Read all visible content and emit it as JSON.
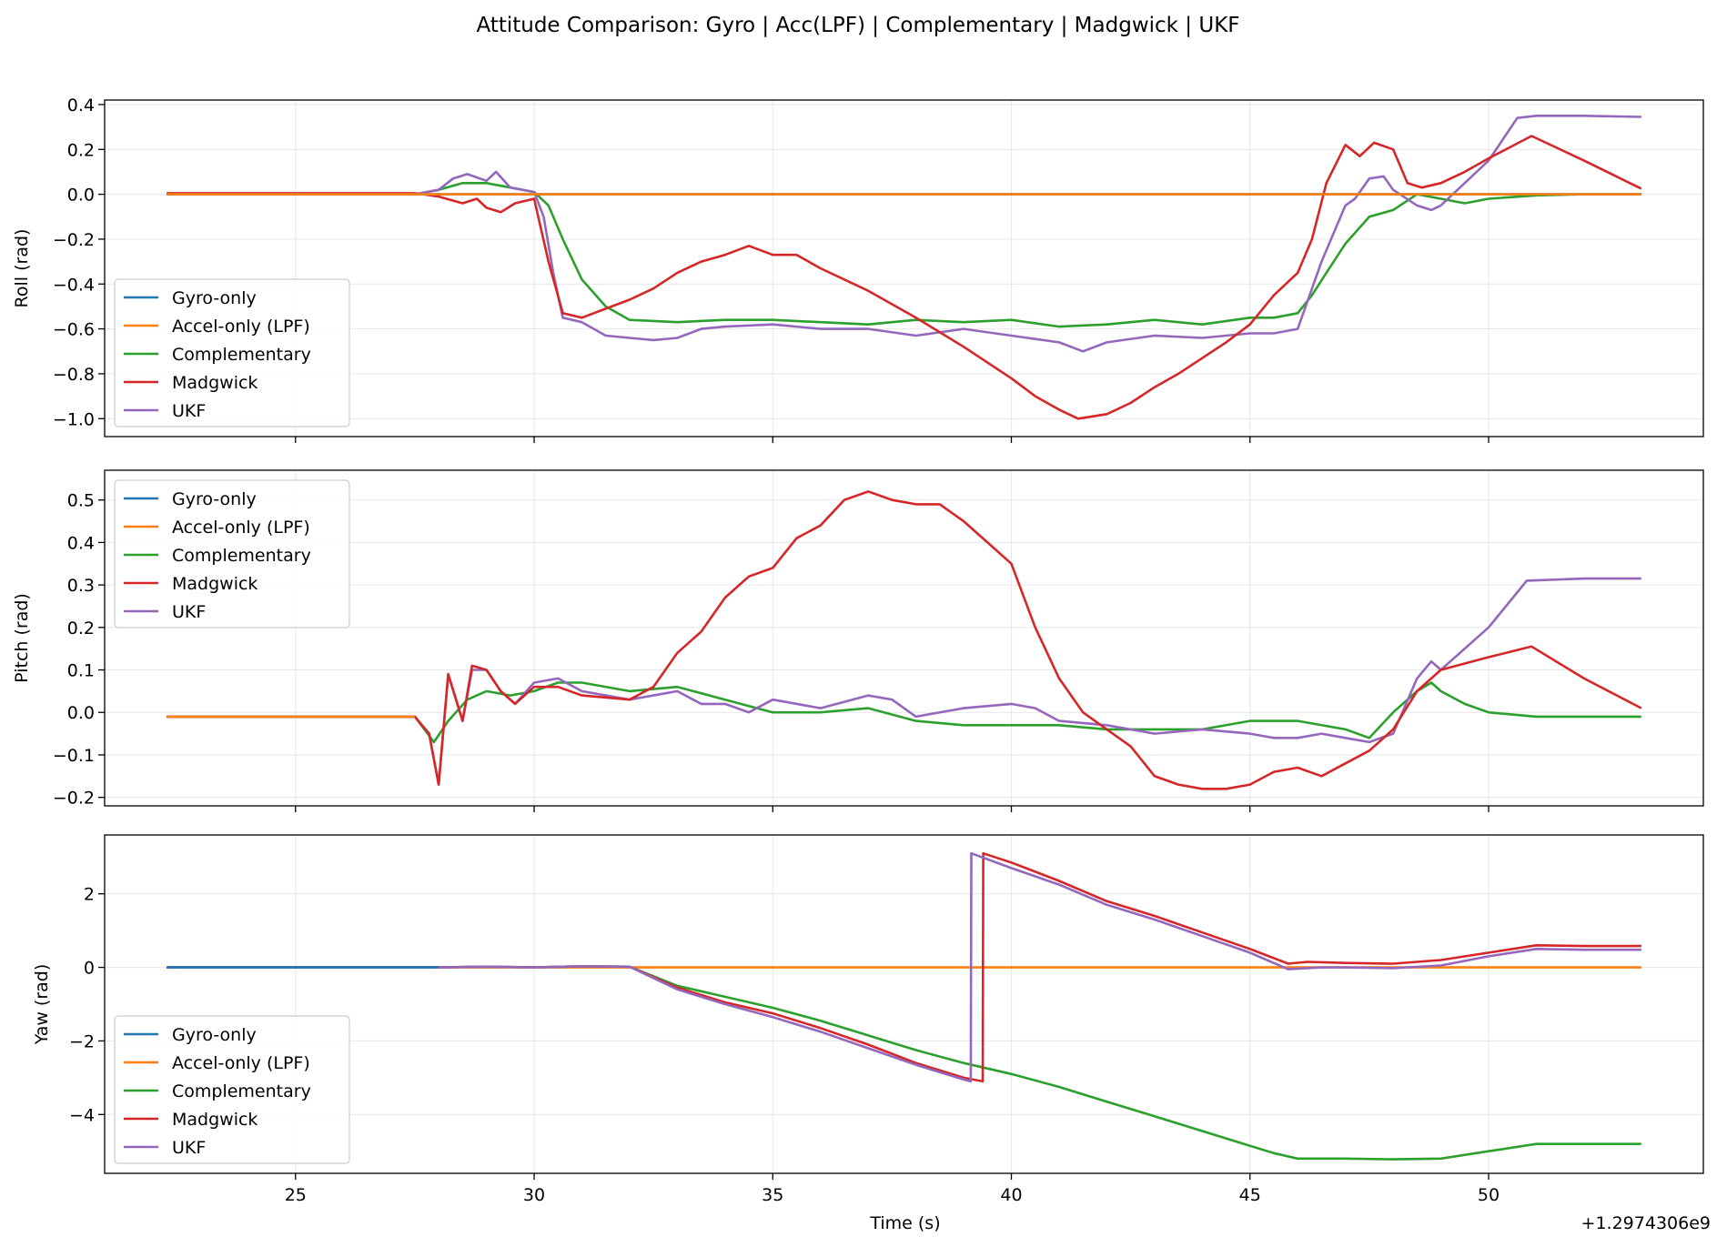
{
  "title": "Attitude Comparison: Gyro | Acc(LPF) | Complementary | Madgwick | UKF",
  "colors": {
    "Gyro-only": "#1f77b4",
    "Accel-only (LPF)": "#ff7f0e",
    "Complementary": "#2ca02c",
    "Madgwick": "#d62728",
    "UKF": "#9467bd"
  },
  "chart_data": [
    {
      "type": "line",
      "ylabel": "Roll (rad)",
      "xlabel": "",
      "xlim": [
        21,
        54.5
      ],
      "ylim": [
        -1.08,
        0.42
      ],
      "xticks": [
        25,
        30,
        35,
        40,
        45,
        50
      ],
      "yticks": [
        0.4,
        0.2,
        0.0,
        -0.2,
        -0.4,
        -0.6,
        -0.8,
        -1.0
      ],
      "ytick_labels": [
        "0.4",
        "0.2",
        "0.0",
        "−0.2",
        "−0.4",
        "−0.6",
        "−0.8",
        "−1.0"
      ],
      "grid": true,
      "legend": "lower-left",
      "legend_entries": [
        "Gyro-only",
        "Accel-only (LPF)",
        "Complementary",
        "Madgwick",
        "UKF"
      ],
      "series": [
        {
          "name": "Complementary",
          "x": [
            22.3,
            25,
            27.5,
            28,
            28.5,
            29,
            29.5,
            30,
            30.3,
            30.6,
            31,
            31.5,
            32,
            33,
            34,
            35,
            36,
            37,
            38,
            39,
            40,
            41,
            42,
            43,
            44,
            45,
            45.5,
            46,
            46.3,
            46.6,
            47,
            47.5,
            48,
            48.5,
            49,
            49.5,
            50,
            51,
            52,
            53.2
          ],
          "y": [
            0,
            0,
            0,
            0.02,
            0.05,
            0.05,
            0.03,
            0.01,
            -0.05,
            -0.2,
            -0.38,
            -0.5,
            -0.56,
            -0.57,
            -0.56,
            -0.56,
            -0.57,
            -0.58,
            -0.56,
            -0.57,
            -0.56,
            -0.59,
            -0.58,
            -0.56,
            -0.58,
            -0.55,
            -0.55,
            -0.53,
            -0.45,
            -0.35,
            -0.22,
            -0.1,
            -0.07,
            0,
            -0.02,
            -0.04,
            -0.02,
            -0.005,
            0,
            0
          ]
        },
        {
          "name": "UKF",
          "x": [
            22.3,
            25,
            27.5,
            28,
            28.3,
            28.6,
            29,
            29.2,
            29.5,
            30,
            30.2,
            30.4,
            30.6,
            31,
            31.5,
            32,
            32.5,
            33,
            33.5,
            34,
            35,
            36,
            37,
            38,
            39,
            40,
            41,
            41.5,
            42,
            43,
            44,
            45,
            45.5,
            46,
            46.5,
            47,
            47.2,
            47.5,
            47.8,
            48,
            48.5,
            48.8,
            49,
            50,
            50.6,
            51,
            52,
            53.2
          ],
          "y": [
            0,
            0,
            0,
            0.02,
            0.07,
            0.09,
            0.06,
            0.1,
            0.03,
            0.01,
            -0.1,
            -0.35,
            -0.55,
            -0.57,
            -0.63,
            -0.64,
            -0.65,
            -0.64,
            -0.6,
            -0.59,
            -0.58,
            -0.6,
            -0.6,
            -0.63,
            -0.6,
            -0.63,
            -0.66,
            -0.7,
            -0.66,
            -0.63,
            -0.64,
            -0.62,
            -0.62,
            -0.6,
            -0.3,
            -0.05,
            -0.02,
            0.07,
            0.08,
            0.02,
            -0.05,
            -0.07,
            -0.05,
            0.15,
            0.34,
            0.35,
            0.35,
            0.345
          ]
        },
        {
          "name": "Madgwick",
          "x": [
            22.3,
            25,
            27.5,
            28,
            28.5,
            28.8,
            29,
            29.3,
            29.6,
            30,
            30.3,
            30.6,
            31,
            31.5,
            32,
            32.5,
            33,
            33.5,
            34,
            34.5,
            35,
            35.5,
            36,
            37,
            38,
            39,
            40,
            40.5,
            41,
            41.4,
            42,
            42.5,
            43,
            43.5,
            44,
            44.5,
            45,
            45.5,
            46,
            46.3,
            46.6,
            47,
            47.3,
            47.6,
            48,
            48.3,
            48.6,
            49,
            49.5,
            50,
            50.9,
            52,
            53.2
          ],
          "y": [
            0.005,
            0.005,
            0.005,
            -0.01,
            -0.04,
            -0.02,
            -0.06,
            -0.08,
            -0.04,
            -0.02,
            -0.3,
            -0.53,
            -0.55,
            -0.51,
            -0.47,
            -0.42,
            -0.35,
            -0.3,
            -0.27,
            -0.23,
            -0.27,
            -0.27,
            -0.33,
            -0.43,
            -0.55,
            -0.68,
            -0.82,
            -0.9,
            -0.96,
            -1.0,
            -0.98,
            -0.93,
            -0.86,
            -0.8,
            -0.73,
            -0.66,
            -0.58,
            -0.45,
            -0.35,
            -0.2,
            0.05,
            0.22,
            0.17,
            0.23,
            0.2,
            0.05,
            0.03,
            0.05,
            0.1,
            0.16,
            0.26,
            0.15,
            0.025
          ]
        },
        {
          "name": "Gyro-only",
          "x": [
            22.3,
            53.2
          ],
          "y": [
            0,
            0
          ]
        },
        {
          "name": "Accel-only (LPF)",
          "x": [
            22.3,
            53.2
          ],
          "y": [
            0,
            0
          ]
        }
      ]
    },
    {
      "type": "line",
      "ylabel": "Pitch (rad)",
      "xlabel": "",
      "xlim": [
        21,
        54.5
      ],
      "ylim": [
        -0.22,
        0.57
      ],
      "xticks": [
        25,
        30,
        35,
        40,
        45,
        50
      ],
      "yticks": [
        0.5,
        0.4,
        0.3,
        0.2,
        0.1,
        0.0,
        -0.1,
        -0.2
      ],
      "ytick_labels": [
        "0.5",
        "0.4",
        "0.3",
        "0.2",
        "0.1",
        "0.0",
        "−0.1",
        "−0.2"
      ],
      "grid": true,
      "legend": "upper-left",
      "legend_entries": [
        "Gyro-only",
        "Accel-only (LPF)",
        "Complementary",
        "Madgwick",
        "UKF"
      ],
      "series": [
        {
          "name": "Complementary",
          "x": [
            22.3,
            25,
            27.5,
            27.9,
            28.2,
            28.6,
            29,
            29.5,
            30,
            30.5,
            31,
            32,
            33,
            34,
            35,
            36,
            37,
            38,
            39,
            40,
            41,
            42,
            43,
            44,
            45,
            46,
            47,
            47.5,
            48,
            48.5,
            48.8,
            49,
            49.5,
            50,
            51,
            53.2
          ],
          "y": [
            -0.01,
            -0.01,
            -0.01,
            -0.07,
            -0.02,
            0.03,
            0.05,
            0.04,
            0.05,
            0.07,
            0.07,
            0.05,
            0.06,
            0.03,
            0.0,
            0.0,
            0.01,
            -0.02,
            -0.03,
            -0.03,
            -0.03,
            -0.04,
            -0.04,
            -0.04,
            -0.02,
            -0.02,
            -0.04,
            -0.06,
            0.0,
            0.05,
            0.07,
            0.05,
            0.02,
            0.0,
            -0.01,
            -0.01
          ]
        },
        {
          "name": "UKF",
          "x": [
            22.3,
            25,
            27.5,
            27.8,
            28,
            28.2,
            28.5,
            28.7,
            29,
            29.3,
            29.6,
            30,
            30.5,
            31,
            32,
            33,
            33.5,
            34,
            34.5,
            35,
            36,
            37,
            37.5,
            38,
            39,
            40,
            40.5,
            41,
            42,
            43,
            44,
            45,
            45.5,
            46,
            46.5,
            47,
            47.5,
            48,
            48.5,
            48.8,
            49,
            50,
            50.8,
            52,
            53.2
          ],
          "y": [
            -0.01,
            -0.01,
            -0.01,
            -0.05,
            -0.17,
            0.09,
            -0.02,
            0.1,
            0.1,
            0.05,
            0.02,
            0.07,
            0.08,
            0.05,
            0.03,
            0.05,
            0.02,
            0.02,
            0.0,
            0.03,
            0.01,
            0.04,
            0.03,
            -0.01,
            0.01,
            0.02,
            0.01,
            -0.02,
            -0.03,
            -0.05,
            -0.04,
            -0.05,
            -0.06,
            -0.06,
            -0.05,
            -0.06,
            -0.07,
            -0.05,
            0.08,
            0.12,
            0.1,
            0.2,
            0.31,
            0.315,
            0.315
          ]
        },
        {
          "name": "Madgwick",
          "x": [
            22.3,
            25,
            27.5,
            27.8,
            28,
            28.2,
            28.5,
            28.7,
            29,
            29.3,
            29.6,
            30,
            30.5,
            31,
            32,
            32.5,
            33,
            33.5,
            34,
            34.5,
            35,
            35.5,
            36,
            36.5,
            37,
            37.5,
            38,
            38.5,
            39,
            39.5,
            40,
            40.5,
            41,
            41.5,
            42,
            42.5,
            43,
            43.5,
            44,
            44.5,
            45,
            45.5,
            46,
            46.5,
            47,
            47.5,
            48,
            48.5,
            49,
            50,
            50.9,
            52,
            53.2
          ],
          "y": [
            -0.01,
            -0.01,
            -0.01,
            -0.05,
            -0.17,
            0.09,
            -0.02,
            0.11,
            0.1,
            0.05,
            0.02,
            0.06,
            0.06,
            0.04,
            0.03,
            0.06,
            0.14,
            0.19,
            0.27,
            0.32,
            0.34,
            0.41,
            0.44,
            0.5,
            0.52,
            0.5,
            0.49,
            0.49,
            0.45,
            0.4,
            0.35,
            0.2,
            0.08,
            0.0,
            -0.04,
            -0.08,
            -0.15,
            -0.17,
            -0.18,
            -0.18,
            -0.17,
            -0.14,
            -0.13,
            -0.15,
            -0.12,
            -0.09,
            -0.04,
            0.05,
            0.1,
            0.13,
            0.155,
            0.08,
            0.01
          ]
        },
        {
          "name": "Gyro-only",
          "x": [
            22.3,
            27.5
          ],
          "y": [
            -0.01,
            -0.01
          ]
        },
        {
          "name": "Accel-only (LPF)",
          "x": [
            22.3,
            27.5
          ],
          "y": [
            -0.01,
            -0.01
          ]
        }
      ]
    },
    {
      "type": "line",
      "ylabel": "Yaw (rad)",
      "xlabel": "Time (s)",
      "offset_text": "+1.2974306e9",
      "xlim": [
        21,
        54.5
      ],
      "ylim": [
        -5.6,
        3.6
      ],
      "xticks": [
        25,
        30,
        35,
        40,
        45,
        50
      ],
      "yticks": [
        2,
        0,
        -2,
        -4
      ],
      "ytick_labels": [
        "2",
        "0",
        "−2",
        "−4"
      ],
      "grid": true,
      "legend": "lower-left",
      "legend_entries": [
        "Gyro-only",
        "Accel-only (LPF)",
        "Complementary",
        "Madgwick",
        "UKF"
      ],
      "series": [
        {
          "name": "Accel-only (LPF)",
          "x": [
            22.3,
            53.2
          ],
          "y": [
            0,
            0
          ]
        },
        {
          "name": "Complementary",
          "x": [
            22.3,
            28,
            29,
            30,
            31,
            32,
            33,
            34,
            35,
            36,
            37,
            38,
            39,
            40,
            41,
            42,
            43,
            44,
            45,
            45.5,
            46,
            46.5,
            47,
            48,
            49,
            50,
            51,
            52,
            53.2
          ],
          "y": [
            0,
            0,
            0.02,
            0,
            0.03,
            0.02,
            -0.5,
            -0.8,
            -1.1,
            -1.45,
            -1.85,
            -2.25,
            -2.6,
            -2.9,
            -3.25,
            -3.65,
            -4.05,
            -4.45,
            -4.85,
            -5.05,
            -5.2,
            -5.2,
            -5.2,
            -5.22,
            -5.2,
            -5.0,
            -4.8,
            -4.8,
            -4.8
          ]
        },
        {
          "name": "Madgwick",
          "x": [
            22.3,
            28,
            29,
            30,
            31,
            32,
            33,
            34,
            35,
            36,
            37,
            38,
            39,
            39.4,
            39.41,
            40,
            41,
            42,
            43,
            44,
            45,
            45.8,
            46.2,
            47,
            48,
            49,
            50,
            51,
            52,
            53.2
          ],
          "y": [
            0,
            0,
            0.02,
            0,
            0.03,
            0.02,
            -0.55,
            -0.95,
            -1.25,
            -1.65,
            -2.1,
            -2.6,
            -3.0,
            -3.1,
            3.1,
            2.85,
            2.35,
            1.8,
            1.4,
            0.95,
            0.5,
            0.1,
            0.15,
            0.12,
            0.1,
            0.2,
            0.4,
            0.6,
            0.58,
            0.58
          ]
        },
        {
          "name": "UKF",
          "x": [
            22.3,
            28,
            29,
            30,
            31,
            32,
            33,
            34,
            35,
            36,
            37,
            38,
            39,
            39.15,
            39.16,
            40,
            41,
            42,
            43,
            44,
            45,
            45.8,
            46.5,
            47,
            48,
            49,
            50,
            51,
            52,
            53.2
          ],
          "y": [
            0,
            0,
            0.02,
            0,
            0.03,
            0.02,
            -0.6,
            -1.0,
            -1.35,
            -1.75,
            -2.2,
            -2.65,
            -3.05,
            -3.1,
            3.1,
            2.7,
            2.25,
            1.7,
            1.3,
            0.85,
            0.4,
            -0.05,
            0.0,
            0.0,
            -0.02,
            0.05,
            0.3,
            0.5,
            0.48,
            0.48
          ]
        },
        {
          "name": "Gyro-only",
          "x": [
            22.3,
            28
          ],
          "y": [
            0,
            0
          ]
        }
      ]
    }
  ]
}
